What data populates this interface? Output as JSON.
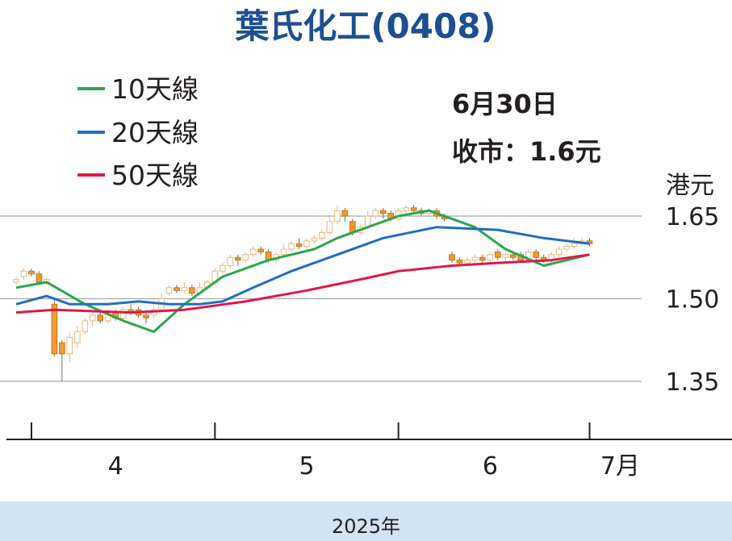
{
  "title": "葉氏化工(0408)",
  "legend": [
    {
      "label": "10天線",
      "color": "#2aa84a"
    },
    {
      "label": "20天線",
      "color": "#1f6fc1"
    },
    {
      "label": "50天線",
      "color": "#e0184a"
    }
  ],
  "info": {
    "date": "6月30日",
    "close": "收市：1.6元"
  },
  "unit_label": "港元",
  "year_label": "2025年",
  "chart_data": {
    "type": "candlestick",
    "ylim": [
      1.3,
      1.7
    ],
    "y_ticks": [
      {
        "value": 1.35,
        "label": "1.35"
      },
      {
        "value": 1.5,
        "label": "1.50"
      },
      {
        "value": 1.65,
        "label": "1.65"
      }
    ],
    "x_range": [
      0,
      76
    ],
    "x_ticks": [
      2,
      26,
      50,
      75
    ],
    "x_labels": [
      {
        "x": 13,
        "label": "4"
      },
      {
        "x": 38,
        "label": "5"
      },
      {
        "x": 62,
        "label": "6"
      },
      {
        "x": 79,
        "label": "7月"
      }
    ],
    "candles": [
      [
        0,
        1.53,
        1.535,
        1.54,
        1.525
      ],
      [
        1,
        1.54,
        1.55,
        1.555,
        1.535
      ],
      [
        2,
        1.55,
        1.545,
        1.555,
        1.54
      ],
      [
        3,
        1.545,
        1.53,
        1.55,
        1.525
      ],
      [
        4,
        1.53,
        1.535,
        1.54,
        1.525
      ],
      [
        5,
        1.49,
        1.4,
        1.5,
        1.395
      ],
      [
        6,
        1.42,
        1.4,
        1.425,
        1.35
      ],
      [
        7,
        1.4,
        1.43,
        1.44,
        1.385
      ],
      [
        8,
        1.42,
        1.44,
        1.45,
        1.41
      ],
      [
        9,
        1.44,
        1.46,
        1.465,
        1.435
      ],
      [
        10,
        1.46,
        1.47,
        1.475,
        1.45
      ],
      [
        11,
        1.47,
        1.46,
        1.48,
        1.455
      ],
      [
        12,
        1.46,
        1.475,
        1.48,
        1.455
      ],
      [
        13,
        1.475,
        1.465,
        1.48,
        1.46
      ],
      [
        14,
        1.465,
        1.48,
        1.485,
        1.46
      ],
      [
        15,
        1.48,
        1.475,
        1.49,
        1.47
      ],
      [
        16,
        1.48,
        1.47,
        1.485,
        1.465
      ],
      [
        17,
        1.47,
        1.465,
        1.48,
        1.455
      ],
      [
        18,
        1.47,
        1.48,
        1.49,
        1.465
      ],
      [
        19,
        1.48,
        1.5,
        1.51,
        1.475
      ],
      [
        20,
        1.51,
        1.52,
        1.525,
        1.505
      ],
      [
        21,
        1.52,
        1.515,
        1.525,
        1.51
      ],
      [
        22,
        1.515,
        1.52,
        1.53,
        1.51
      ],
      [
        23,
        1.52,
        1.51,
        1.525,
        1.505
      ],
      [
        24,
        1.51,
        1.52,
        1.53,
        1.505
      ],
      [
        25,
        1.52,
        1.53,
        1.535,
        1.515
      ],
      [
        26,
        1.53,
        1.55,
        1.555,
        1.525
      ],
      [
        27,
        1.55,
        1.56,
        1.565,
        1.545
      ],
      [
        28,
        1.56,
        1.575,
        1.58,
        1.555
      ],
      [
        29,
        1.575,
        1.57,
        1.58,
        1.56
      ],
      [
        30,
        1.57,
        1.58,
        1.585,
        1.565
      ],
      [
        31,
        1.58,
        1.59,
        1.595,
        1.575
      ],
      [
        32,
        1.59,
        1.585,
        1.595,
        1.58
      ],
      [
        33,
        1.585,
        1.57,
        1.59,
        1.565
      ],
      [
        34,
        1.57,
        1.58,
        1.585,
        1.565
      ],
      [
        35,
        1.58,
        1.59,
        1.6,
        1.575
      ],
      [
        36,
        1.59,
        1.6,
        1.605,
        1.585
      ],
      [
        37,
        1.6,
        1.595,
        1.61,
        1.59
      ],
      [
        38,
        1.595,
        1.605,
        1.61,
        1.59
      ],
      [
        39,
        1.605,
        1.61,
        1.615,
        1.6
      ],
      [
        40,
        1.61,
        1.62,
        1.625,
        1.605
      ],
      [
        41,
        1.62,
        1.64,
        1.65,
        1.615
      ],
      [
        42,
        1.64,
        1.66,
        1.67,
        1.635
      ],
      [
        43,
        1.66,
        1.65,
        1.665,
        1.64
      ],
      [
        44,
        1.64,
        1.62,
        1.645,
        1.615
      ],
      [
        45,
        1.62,
        1.63,
        1.635,
        1.615
      ],
      [
        46,
        1.63,
        1.65,
        1.66,
        1.625
      ],
      [
        47,
        1.65,
        1.66,
        1.665,
        1.645
      ],
      [
        48,
        1.66,
        1.655,
        1.665,
        1.645
      ],
      [
        49,
        1.655,
        1.645,
        1.66,
        1.64
      ],
      [
        50,
        1.645,
        1.66,
        1.665,
        1.64
      ],
      [
        51,
        1.66,
        1.665,
        1.67,
        1.655
      ],
      [
        52,
        1.665,
        1.66,
        1.67,
        1.655
      ],
      [
        53,
        1.66,
        1.655,
        1.665,
        1.65
      ],
      [
        54,
        1.655,
        1.66,
        1.665,
        1.65
      ],
      [
        55,
        1.66,
        1.65,
        1.665,
        1.645
      ],
      [
        56,
        1.65,
        1.645,
        1.655,
        1.64
      ],
      [
        57,
        1.58,
        1.57,
        1.585,
        1.565
      ],
      [
        58,
        1.57,
        1.565,
        1.575,
        1.56
      ],
      [
        59,
        1.565,
        1.57,
        1.575,
        1.56
      ],
      [
        60,
        1.57,
        1.575,
        1.58,
        1.565
      ],
      [
        61,
        1.575,
        1.57,
        1.58,
        1.565
      ],
      [
        62,
        1.57,
        1.58,
        1.585,
        1.565
      ],
      [
        63,
        1.585,
        1.575,
        1.59,
        1.57
      ],
      [
        64,
        1.575,
        1.58,
        1.585,
        1.565
      ],
      [
        65,
        1.58,
        1.575,
        1.585,
        1.57
      ],
      [
        66,
        1.58,
        1.57,
        1.585,
        1.565
      ],
      [
        67,
        1.57,
        1.585,
        1.59,
        1.565
      ],
      [
        68,
        1.585,
        1.575,
        1.59,
        1.57
      ],
      [
        69,
        1.575,
        1.57,
        1.58,
        1.565
      ],
      [
        70,
        1.57,
        1.58,
        1.585,
        1.565
      ],
      [
        71,
        1.58,
        1.59,
        1.595,
        1.575
      ],
      [
        72,
        1.59,
        1.595,
        1.6,
        1.585
      ],
      [
        73,
        1.595,
        1.6,
        1.61,
        1.59
      ],
      [
        74,
        1.6,
        1.605,
        1.61,
        1.595
      ],
      [
        75,
        1.605,
        1.6,
        1.61,
        1.595
      ]
    ],
    "series": [
      {
        "name": "10天線",
        "color": "#2aa84a",
        "points": [
          [
            0,
            1.52
          ],
          [
            4,
            1.53
          ],
          [
            9,
            1.49
          ],
          [
            14,
            1.46
          ],
          [
            18,
            1.44
          ],
          [
            22,
            1.49
          ],
          [
            27,
            1.54
          ],
          [
            33,
            1.57
          ],
          [
            36,
            1.58
          ],
          [
            39,
            1.59
          ],
          [
            42,
            1.61
          ],
          [
            46,
            1.63
          ],
          [
            50,
            1.65
          ],
          [
            54,
            1.66
          ],
          [
            60,
            1.63
          ],
          [
            64,
            1.59
          ],
          [
            69,
            1.56
          ],
          [
            72,
            1.57
          ],
          [
            75,
            1.58
          ]
        ]
      },
      {
        "name": "20天線",
        "color": "#1f6fc1",
        "points": [
          [
            0,
            1.49
          ],
          [
            4,
            1.505
          ],
          [
            7,
            1.49
          ],
          [
            12,
            1.49
          ],
          [
            16,
            1.495
          ],
          [
            20,
            1.49
          ],
          [
            24,
            1.49
          ],
          [
            27,
            1.495
          ],
          [
            31,
            1.52
          ],
          [
            36,
            1.55
          ],
          [
            42,
            1.58
          ],
          [
            48,
            1.61
          ],
          [
            55,
            1.63
          ],
          [
            63,
            1.625
          ],
          [
            69,
            1.61
          ],
          [
            75,
            1.6
          ]
        ]
      },
      {
        "name": "50天線",
        "color": "#e0184a",
        "points": [
          [
            0,
            1.475
          ],
          [
            5,
            1.48
          ],
          [
            15,
            1.475
          ],
          [
            22,
            1.48
          ],
          [
            30,
            1.495
          ],
          [
            38,
            1.515
          ],
          [
            45,
            1.535
          ],
          [
            50,
            1.55
          ],
          [
            57,
            1.56
          ],
          [
            63,
            1.565
          ],
          [
            70,
            1.57
          ],
          [
            75,
            1.58
          ]
        ]
      }
    ]
  }
}
